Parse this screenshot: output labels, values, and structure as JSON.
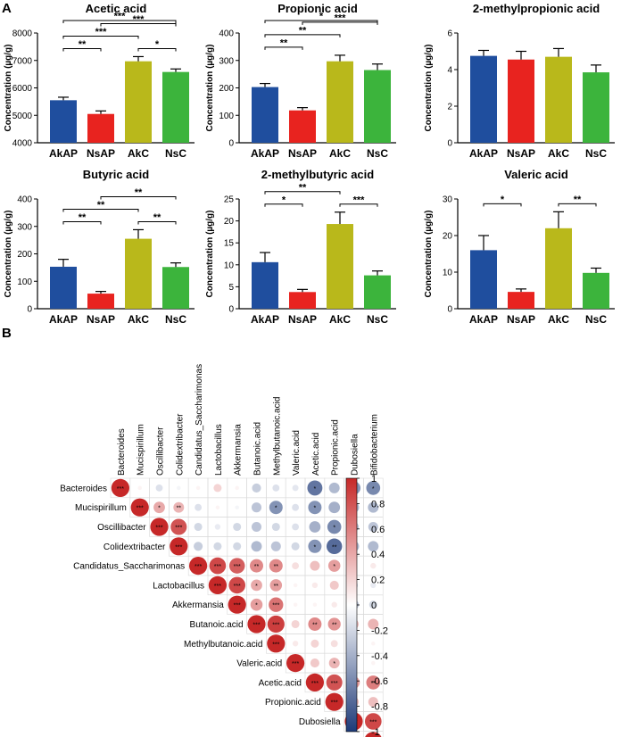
{
  "figure": {
    "panel_labels": [
      "A",
      "B"
    ]
  },
  "chart_data": [
    {
      "type": "bar",
      "title": "Acetic acid",
      "ylabel": "Concentration (µg/g)",
      "categories": [
        "AkAP",
        "NsAP",
        "AkC",
        "NsC"
      ],
      "values": [
        5550,
        5050,
        6970,
        6580
      ],
      "errors": [
        110,
        110,
        170,
        110
      ],
      "ylim": [
        4000,
        8000
      ],
      "yticks": [
        4000,
        5000,
        6000,
        7000,
        8000
      ],
      "significance": [
        {
          "pair": [
            "AkAP",
            "NsC"
          ],
          "label": "***"
        },
        {
          "pair": [
            "AkAP",
            "AkC"
          ],
          "label": "***"
        },
        {
          "pair": [
            "AkC",
            "NsC"
          ],
          "label": "*"
        },
        {
          "pair": [
            "AkAP",
            "NsAP"
          ],
          "label": "**"
        },
        {
          "pair": [
            "NsAP",
            "NsC"
          ],
          "label": "***"
        }
      ]
    },
    {
      "type": "bar",
      "title": "Propionic acid",
      "ylabel": "Concentration (µg/g)",
      "categories": [
        "AkAP",
        "NsAP",
        "AkC",
        "NsC"
      ],
      "values": [
        203,
        118,
        297,
        265
      ],
      "errors": [
        13,
        10,
        22,
        22
      ],
      "ylim": [
        0,
        400
      ],
      "yticks": [
        0,
        100,
        200,
        300,
        400
      ],
      "significance": [
        {
          "pair": [
            "AkAP",
            "NsC"
          ],
          "label": "*"
        },
        {
          "pair": [
            "AkAP",
            "AkC"
          ],
          "label": "**"
        },
        {
          "pair": [
            "AkAP",
            "NsAP"
          ],
          "label": "**"
        },
        {
          "pair": [
            "NsAP",
            "NsC"
          ],
          "label": "***"
        }
      ]
    },
    {
      "type": "bar",
      "title": "2-methylpropionic acid",
      "ylabel": "Concentration (µg/g)",
      "categories": [
        "AkAP",
        "NsAP",
        "AkC",
        "NsC"
      ],
      "values": [
        4.75,
        4.55,
        4.7,
        3.85
      ],
      "errors": [
        0.3,
        0.45,
        0.45,
        0.4
      ],
      "ylim": [
        0,
        6
      ],
      "yticks": [
        0,
        2,
        4,
        6
      ],
      "significance": []
    },
    {
      "type": "bar",
      "title": "Butyric acid",
      "ylabel": "Concentration (µg/g)",
      "categories": [
        "AkAP",
        "NsAP",
        "AkC",
        "NsC"
      ],
      "values": [
        153,
        55,
        255,
        152
      ],
      "errors": [
        27,
        8,
        33,
        15
      ],
      "ylim": [
        0,
        400
      ],
      "yticks": [
        0,
        100,
        200,
        300,
        400
      ],
      "significance": [
        {
          "pair": [
            "AkAP",
            "AkC"
          ],
          "label": "**"
        },
        {
          "pair": [
            "AkC",
            "NsC"
          ],
          "label": "**"
        },
        {
          "pair": [
            "AkAP",
            "NsAP"
          ],
          "label": "**"
        },
        {
          "pair": [
            "NsAP",
            "NsC"
          ],
          "label": "**"
        }
      ]
    },
    {
      "type": "bar",
      "title": "2-methylbutyric acid",
      "ylabel": "Concentration (µg/g)",
      "categories": [
        "AkAP",
        "NsAP",
        "AkC",
        "NsC"
      ],
      "values": [
        10.6,
        3.8,
        19.3,
        7.6
      ],
      "errors": [
        2.2,
        0.6,
        2.7,
        1.0
      ],
      "ylim": [
        0,
        25
      ],
      "yticks": [
        0,
        5,
        10,
        15,
        20,
        25
      ],
      "significance": [
        {
          "pair": [
            "AkAP",
            "AkC"
          ],
          "label": "**"
        },
        {
          "pair": [
            "AkC",
            "NsC"
          ],
          "label": "***"
        },
        {
          "pair": [
            "AkAP",
            "NsAP"
          ],
          "label": "*"
        }
      ]
    },
    {
      "type": "bar",
      "title": "Valeric acid",
      "ylabel": "Concentration (µg/g)",
      "categories": [
        "AkAP",
        "NsAP",
        "AkC",
        "NsC"
      ],
      "values": [
        16,
        4.6,
        22,
        9.8
      ],
      "errors": [
        4,
        0.8,
        4.5,
        1.3
      ],
      "ylim": [
        0,
        30
      ],
      "yticks": [
        0,
        10,
        20,
        30
      ],
      "significance": [
        {
          "pair": [
            "AkAP",
            "NsAP"
          ],
          "label": "*"
        },
        {
          "pair": [
            "AkC",
            "NsC"
          ],
          "label": "**"
        }
      ]
    },
    {
      "type": "heatmap",
      "variables": [
        "Bacteroides",
        "Mucispirillum",
        "Oscillibacter",
        "Colidextribacter",
        "Candidatus_Saccharimonas",
        "Lactobacillus",
        "Akkermansia",
        "Butanoic.acid",
        "Methylbutanoic.acid",
        "Valeric.acid",
        "Acetic.acid",
        "Propionic.acid",
        "Dubosiella",
        "Bifidobacterium"
      ],
      "colorbar_ticks": [
        "1",
        "0.8",
        "0.6",
        "0.4",
        "0.2",
        "0",
        "-0.2",
        "-0.4",
        "-0.6",
        "-0.8",
        "-1"
      ],
      "colorbar_range": [
        -1,
        1
      ],
      "correlation": [
        [
          1,
          0.05,
          -0.15,
          -0.05,
          0.05,
          0.2,
          0.05,
          -0.25,
          -0.15,
          -0.12,
          -0.7,
          -0.35,
          -0.55,
          -0.6
        ],
        [
          null,
          1,
          0.4,
          0.35,
          -0.15,
          0.05,
          -0.05,
          -0.3,
          -0.55,
          -0.15,
          -0.55,
          -0.4,
          -0.35,
          -0.35
        ],
        [
          null,
          null,
          1,
          0.8,
          -0.2,
          -0.1,
          -0.2,
          -0.3,
          -0.2,
          -0.15,
          -0.4,
          -0.6,
          -0.3,
          -0.3
        ],
        [
          null,
          null,
          null,
          1,
          -0.25,
          -0.2,
          -0.2,
          -0.35,
          -0.3,
          -0.2,
          -0.55,
          -0.75,
          -0.35,
          -0.35
        ],
        [
          null,
          null,
          null,
          null,
          1,
          0.85,
          0.75,
          0.55,
          0.55,
          0.15,
          0.3,
          0.45,
          -0.1,
          0.1
        ],
        [
          null,
          null,
          null,
          null,
          null,
          1,
          0.85,
          0.4,
          0.45,
          0.05,
          0.1,
          0.25,
          -0.2,
          -0.1
        ],
        [
          null,
          null,
          null,
          null,
          null,
          null,
          1,
          0.45,
          0.65,
          0.05,
          0.05,
          0.1,
          -0.3,
          -0.2
        ],
        [
          null,
          null,
          null,
          null,
          null,
          null,
          null,
          1,
          0.9,
          0.2,
          0.55,
          0.5,
          0.3,
          0.35
        ],
        [
          null,
          null,
          null,
          null,
          null,
          null,
          null,
          null,
          1,
          0.1,
          0.2,
          0.15,
          0.05,
          0.05
        ],
        [
          null,
          null,
          null,
          null,
          null,
          null,
          null,
          null,
          null,
          1,
          0.25,
          0.35,
          0.05,
          0.05
        ],
        [
          null,
          null,
          null,
          null,
          null,
          null,
          null,
          null,
          null,
          null,
          1,
          0.8,
          0.45,
          0.6
        ],
        [
          null,
          null,
          null,
          null,
          null,
          null,
          null,
          null,
          null,
          null,
          null,
          1,
          0.3,
          0.3
        ],
        [
          null,
          null,
          null,
          null,
          null,
          null,
          null,
          null,
          null,
          null,
          null,
          null,
          1,
          0.85
        ],
        [
          null,
          null,
          null,
          null,
          null,
          null,
          null,
          null,
          null,
          null,
          null,
          null,
          null,
          1
        ]
      ],
      "stars": [
        [
          "***",
          "",
          "",
          "",
          "",
          "",
          "",
          "",
          "",
          "",
          "*",
          "",
          "*",
          "*"
        ],
        [
          null,
          "***",
          "*",
          "**",
          "",
          "",
          "",
          "",
          "*",
          "",
          "*",
          "",
          "",
          ""
        ],
        [
          null,
          null,
          "***",
          "***",
          "",
          "",
          "",
          "",
          "",
          "",
          "",
          "*",
          "",
          ""
        ],
        [
          null,
          null,
          null,
          "***",
          "",
          "",
          "",
          "",
          "",
          "",
          "*",
          "**",
          "",
          ""
        ],
        [
          null,
          null,
          null,
          null,
          "***",
          "***",
          "***",
          "**",
          "**",
          "",
          "",
          "*",
          "",
          ""
        ],
        [
          null,
          null,
          null,
          null,
          null,
          "***",
          "***",
          "*",
          "**",
          "",
          "",
          "",
          "",
          ""
        ],
        [
          null,
          null,
          null,
          null,
          null,
          null,
          "***",
          "*",
          "***",
          "",
          "",
          "",
          "",
          ""
        ],
        [
          null,
          null,
          null,
          null,
          null,
          null,
          null,
          "***",
          "***",
          "",
          "**",
          "**",
          "",
          ""
        ],
        [
          null,
          null,
          null,
          null,
          null,
          null,
          null,
          null,
          "***",
          "",
          "",
          "",
          "",
          ""
        ],
        [
          null,
          null,
          null,
          null,
          null,
          null,
          null,
          null,
          null,
          "***",
          "",
          "*",
          "",
          ""
        ],
        [
          null,
          null,
          null,
          null,
          null,
          null,
          null,
          null,
          null,
          null,
          "***",
          "***",
          "*",
          "**"
        ],
        [
          null,
          null,
          null,
          null,
          null,
          null,
          null,
          null,
          null,
          null,
          null,
          "***",
          "",
          ""
        ],
        [
          null,
          null,
          null,
          null,
          null,
          null,
          null,
          null,
          null,
          null,
          null,
          null,
          "***",
          "***"
        ],
        [
          null,
          null,
          null,
          null,
          null,
          null,
          null,
          null,
          null,
          null,
          null,
          null,
          null,
          "***"
        ]
      ]
    }
  ],
  "colors": {
    "bars": [
      "#1f4e9e",
      "#e8231f",
      "#b9b81b",
      "#3cb43c"
    ],
    "positive": "#c62828",
    "negative": "#1e3a78",
    "neutral": "#ffffff"
  }
}
